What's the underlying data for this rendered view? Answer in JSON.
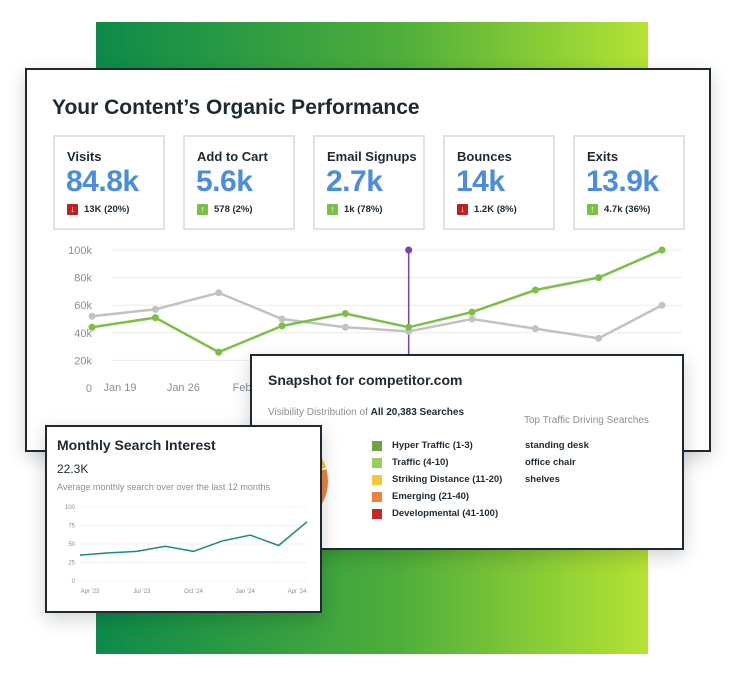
{
  "main": {
    "title": "Your Content’s Organic Performance",
    "kpis": [
      {
        "label": "Visits",
        "value": "84.8k",
        "delta": "13K (20%)",
        "direction": "down"
      },
      {
        "label": "Add to Cart",
        "value": "5.6k",
        "delta": "578 (2%)",
        "direction": "up"
      },
      {
        "label": "Email Signups",
        "value": "2.7k",
        "delta": "1k (78%)",
        "direction": "up"
      },
      {
        "label": "Bounces",
        "value": "14k",
        "delta": "1.2K (8%)",
        "direction": "down"
      },
      {
        "label": "Exits",
        "value": "13.9k",
        "delta": "4.7k (36%)",
        "direction": "up"
      }
    ]
  },
  "colors": {
    "accent_blue": "#4a8de0",
    "green_line": "#7ac143",
    "gray_line": "#c2c2c2",
    "marker_purple": "#7b3fb8",
    "down_red": "#c21f1f",
    "up_green": "#7ac143"
  },
  "chart_data": [
    {
      "type": "line",
      "y_ticks": [
        "100k",
        "80k",
        "60k",
        "40k",
        "20k",
        "0"
      ],
      "x_ticks": [
        "Jan 19",
        "Jan 26",
        "Feb 2"
      ],
      "ylim": [
        0,
        100000
      ],
      "series": [
        {
          "color": "#7ac143",
          "values": [
            44000,
            51000,
            26000,
            45000,
            54000,
            44000,
            55000,
            71000,
            80000,
            100000
          ]
        },
        {
          "color": "#c2c2c2",
          "values": [
            52000,
            57000,
            69000,
            50000,
            44000,
            41000,
            50000,
            43000,
            36000,
            60000
          ]
        }
      ],
      "highlight_index": 5
    },
    {
      "type": "line",
      "title": "Monthly Search Interest",
      "value": "22.3K",
      "subtitle": "Average monthly search over over the last 12 months",
      "y_ticks": [
        "100",
        "75",
        "50",
        "25",
        "0"
      ],
      "x_ticks": [
        "Apr '23",
        "Jul '23",
        "Oct '24",
        "Jan '24",
        "Apr '24"
      ],
      "ylim": [
        0,
        100
      ],
      "series": [
        {
          "color": "#1a8a7a",
          "values": [
            35,
            38,
            40,
            47,
            40,
            54,
            62,
            48,
            80
          ]
        }
      ]
    }
  ],
  "snapshot": {
    "title": "Snapshot for competitor.com",
    "subtitle_prefix": "Visibility Distribution of",
    "subtitle_bold": "All 20,383 Searches",
    "right_title": "Top Traffic Driving Searches",
    "legend": [
      {
        "label": "Hyper Traffic (1-3)",
        "color": "#6ea345"
      },
      {
        "label": "Traffic (4-10)",
        "color": "#9acd5a"
      },
      {
        "label": "Striking Distance (11-20)",
        "color": "#f5c53a"
      },
      {
        "label": "Emerging (21-40)",
        "color": "#f08040"
      },
      {
        "label": "Developmental (41-100)",
        "color": "#c62828"
      }
    ],
    "searches": [
      "standing desk",
      "office chair",
      "shelves"
    ]
  }
}
